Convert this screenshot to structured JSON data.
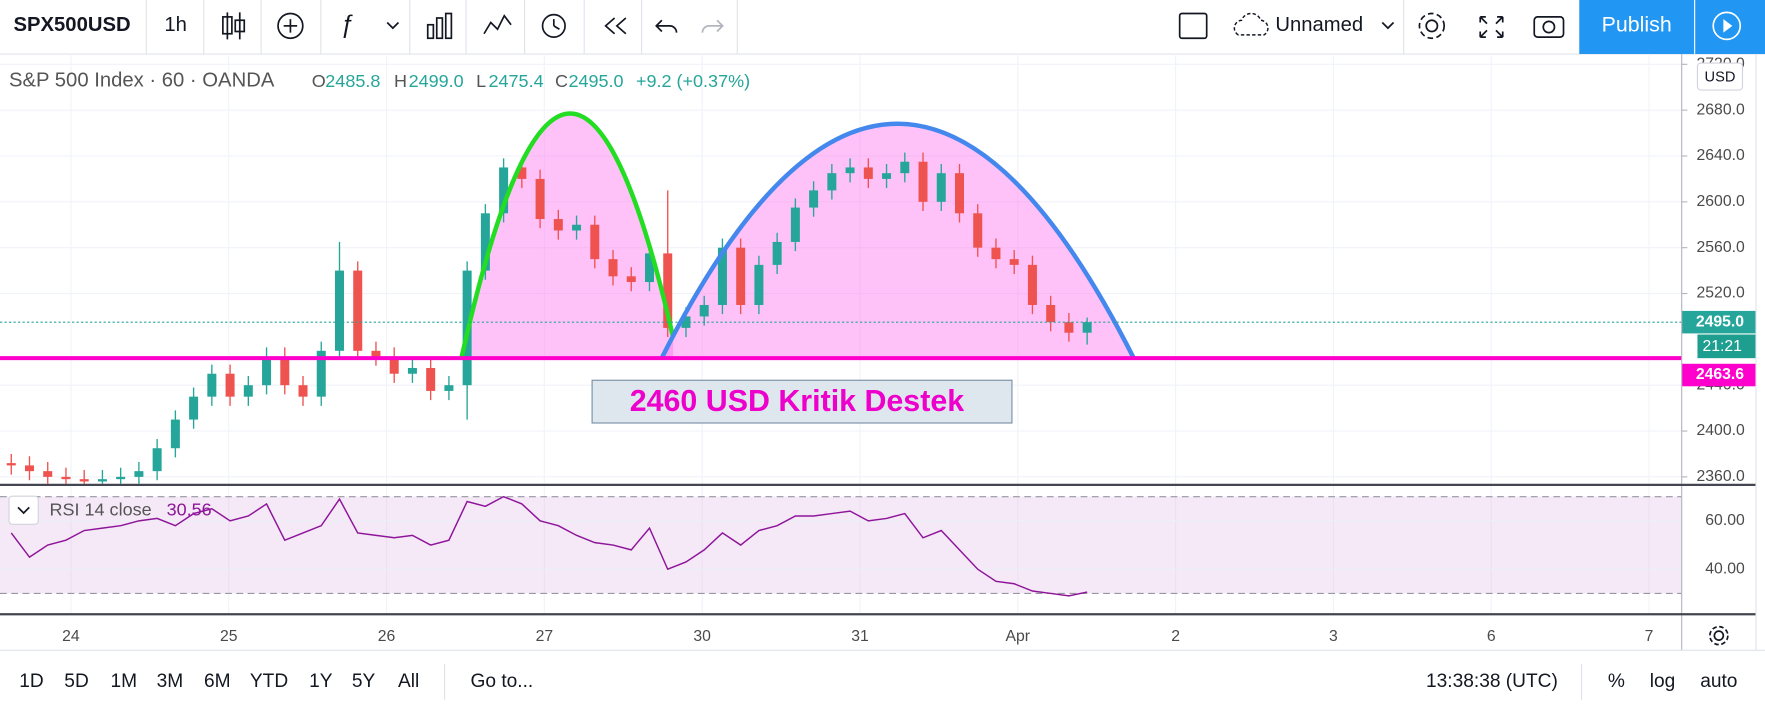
{
  "toolbar": {
    "symbol": "SPX500USD",
    "interval": "1h",
    "layout_name": "Unnamed",
    "publish": "Publish"
  },
  "chart_data": {
    "type": "candlestick",
    "legend": {
      "symbol_info": "S&P 500 Index · 60 · OANDA",
      "open_label": "O",
      "open": "2485.8",
      "high_label": "H",
      "high": "2499.0",
      "low_label": "L",
      "low": "2475.4",
      "close_label": "C",
      "close": "2495.0",
      "change": "+9.2 (+0.37%)"
    },
    "open": [
      2372,
      2370,
      2365,
      2360,
      2358,
      2356,
      2358,
      2360,
      2365,
      2385,
      2410,
      2430,
      2450,
      2430,
      2440,
      2465,
      2440,
      2430,
      2470,
      2540,
      2470,
      2465,
      2450,
      2455,
      2435,
      2440,
      2540,
      2590,
      2630,
      2620,
      2585,
      2575,
      2580,
      2550,
      2535,
      2530,
      2555,
      2490,
      2500,
      2510,
      2560,
      2510,
      2545,
      2565,
      2595,
      2610,
      2625,
      2630,
      2620,
      2625,
      2635,
      2600,
      2625,
      2590,
      2560,
      2550,
      2545,
      2510,
      2495,
      2485.8
    ],
    "high": [
      2380,
      2378,
      2373,
      2368,
      2366,
      2366,
      2368,
      2373,
      2393,
      2418,
      2438,
      2458,
      2458,
      2448,
      2473,
      2473,
      2448,
      2478,
      2565,
      2548,
      2478,
      2473,
      2463,
      2463,
      2448,
      2548,
      2598,
      2638,
      2638,
      2628,
      2593,
      2588,
      2588,
      2558,
      2543,
      2563,
      2610,
      2508,
      2518,
      2568,
      2568,
      2553,
      2573,
      2603,
      2618,
      2633,
      2638,
      2638,
      2633,
      2643,
      2643,
      2633,
      2633,
      2598,
      2568,
      2558,
      2553,
      2518,
      2503,
      2499
    ],
    "low": [
      2362,
      2357,
      2352,
      2350,
      2348,
      2348,
      2350,
      2352,
      2357,
      2377,
      2402,
      2422,
      2422,
      2422,
      2432,
      2432,
      2422,
      2422,
      2462,
      2462,
      2457,
      2442,
      2442,
      2427,
      2427,
      2410,
      2532,
      2582,
      2612,
      2577,
      2567,
      2567,
      2542,
      2527,
      2522,
      2522,
      2482,
      2482,
      2492,
      2502,
      2502,
      2502,
      2537,
      2557,
      2587,
      2602,
      2617,
      2612,
      2612,
      2617,
      2592,
      2592,
      2582,
      2552,
      2542,
      2537,
      2502,
      2487,
      2478,
      2475.4
    ],
    "close": [
      2370,
      2365,
      2360,
      2358,
      2356,
      2358,
      2360,
      2365,
      2385,
      2410,
      2430,
      2450,
      2430,
      2440,
      2465,
      2440,
      2430,
      2470,
      2540,
      2470,
      2465,
      2450,
      2455,
      2435,
      2440,
      2540,
      2590,
      2630,
      2620,
      2585,
      2575,
      2580,
      2550,
      2535,
      2530,
      2555,
      2490,
      2500,
      2510,
      2560,
      2510,
      2545,
      2565,
      2595,
      2610,
      2625,
      2630,
      2620,
      2625,
      2635,
      2600,
      2625,
      2590,
      2560,
      2550,
      2545,
      2510,
      2495,
      2485.8,
      2495
    ],
    "up_color": "#26a69a",
    "down_color": "#ef5350",
    "ylim": [
      2354,
      2729
    ],
    "yticks": [
      {
        "value": 2360,
        "label": "2360.0"
      },
      {
        "value": 2400,
        "label": "2400.0"
      },
      {
        "value": 2440,
        "label": "2440.0"
      },
      {
        "value": 2520,
        "label": "2520.0"
      },
      {
        "value": 2560,
        "label": "2560.0"
      },
      {
        "value": 2600,
        "label": "2600.0"
      },
      {
        "value": 2640,
        "label": "2640.0"
      },
      {
        "value": 2680,
        "label": "2680.0"
      },
      {
        "value": 2720,
        "label": "2720.0"
      }
    ],
    "grid": true,
    "categories": [
      "24",
      "25",
      "26",
      "27",
      "30",
      "31",
      "Apr",
      "2",
      "3",
      "6",
      "7"
    ],
    "axis_unit": "USD",
    "last_price": {
      "value": 2495,
      "label": "2495.0"
    },
    "countdown": "21:21",
    "support_price": 2463.6,
    "support_color": "#ff00cc",
    "annotation": "2460 USD Kritik Destek",
    "rsi": {
      "type": "line",
      "name": "RSI 14 close",
      "color": "#8e1599",
      "values": [
        55,
        45,
        50,
        52,
        56,
        57,
        58,
        60,
        61,
        58,
        63,
        65,
        60,
        62,
        67,
        52,
        55,
        58,
        69,
        55,
        54,
        53,
        54,
        50,
        52,
        68,
        66,
        70,
        67,
        60,
        58,
        54,
        51,
        50,
        48,
        57,
        40,
        43,
        48,
        55,
        50,
        56,
        58,
        62,
        62,
        63,
        64,
        60,
        61,
        63,
        53,
        56,
        48,
        40,
        35,
        34,
        31,
        30,
        29,
        30.56
      ],
      "ylim": [
        21.4,
        74.4
      ],
      "yticks": [
        {
          "value": 40,
          "label": "40.00"
        },
        {
          "value": 60,
          "label": "60.00"
        }
      ],
      "levels": [
        30,
        70
      ]
    }
  },
  "bottom_bar": {
    "ranges": [
      "1D",
      "5D",
      "1M",
      "3M",
      "6M",
      "YTD",
      "1Y",
      "5Y",
      "All"
    ],
    "goto": "Go to...",
    "clock": "13:38:38 (UTC)",
    "options": [
      "%",
      "log",
      "auto"
    ]
  }
}
